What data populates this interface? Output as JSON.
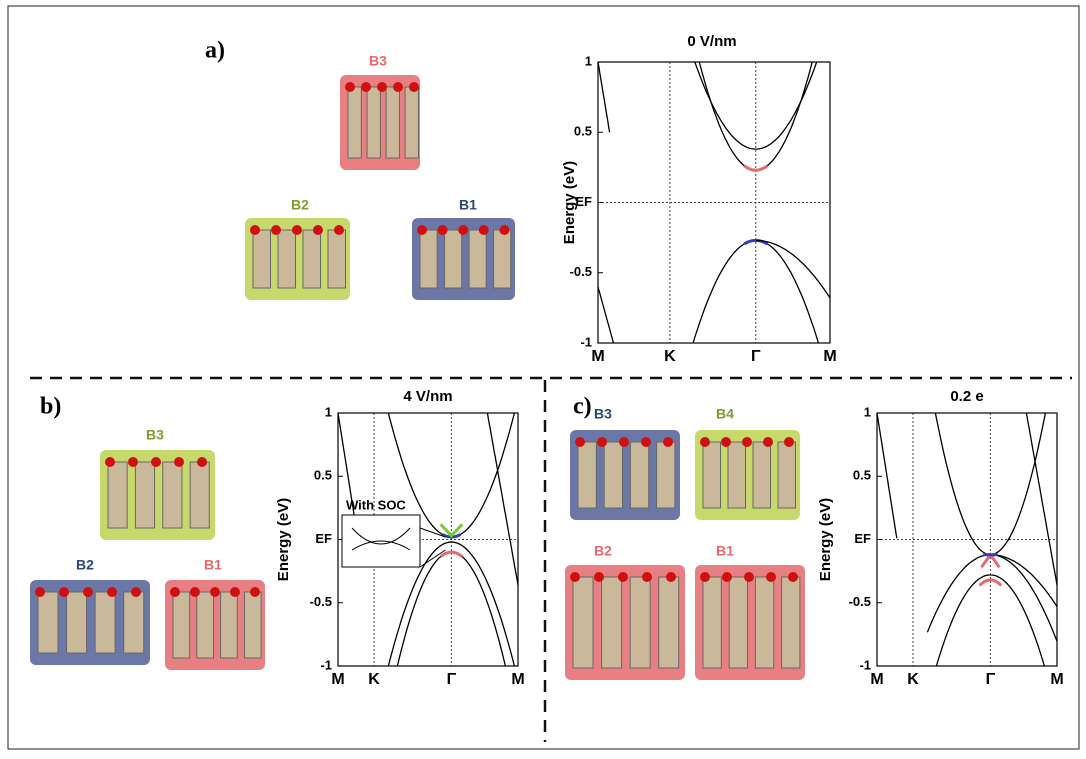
{
  "panels": [
    {
      "label": "a)",
      "structures": [
        "B3",
        "B2",
        "B1"
      ],
      "chart_data": {
        "type": "band-structure",
        "title": "0 V/nm",
        "y_label": "Energy (eV)",
        "categories": [
          "M",
          "K",
          "Γ",
          "M"
        ],
        "ylim": [
          -1,
          1
        ],
        "yticks": [
          -1,
          -0.5,
          {
            "value": 0,
            "label": "EF"
          },
          0.5,
          1
        ]
      }
    },
    {
      "label": "b)",
      "structures": [
        "B3",
        "B2",
        "B1"
      ],
      "chart_data": {
        "type": "band-structure",
        "title": "4 V/nm",
        "y_label": "Energy (eV)",
        "inset_label": "With SOC",
        "categories": [
          "M",
          "K",
          "Γ",
          "M"
        ],
        "ylim": [
          -1,
          1
        ],
        "yticks": [
          -1,
          -0.5,
          {
            "value": 0,
            "label": "EF"
          },
          0.5,
          1
        ]
      }
    },
    {
      "label": "c)",
      "structures": [
        "B3",
        "B4",
        "B2",
        "B1"
      ],
      "chart_data": {
        "type": "band-structure",
        "title": "0.2 e",
        "y_label": "Energy (eV)",
        "categories": [
          "M",
          "K",
          "Γ",
          "M"
        ],
        "ylim": [
          -1,
          1
        ],
        "yticks": [
          -1,
          -0.5,
          {
            "value": 0,
            "label": "EF"
          },
          0.5,
          1
        ]
      }
    }
  ]
}
